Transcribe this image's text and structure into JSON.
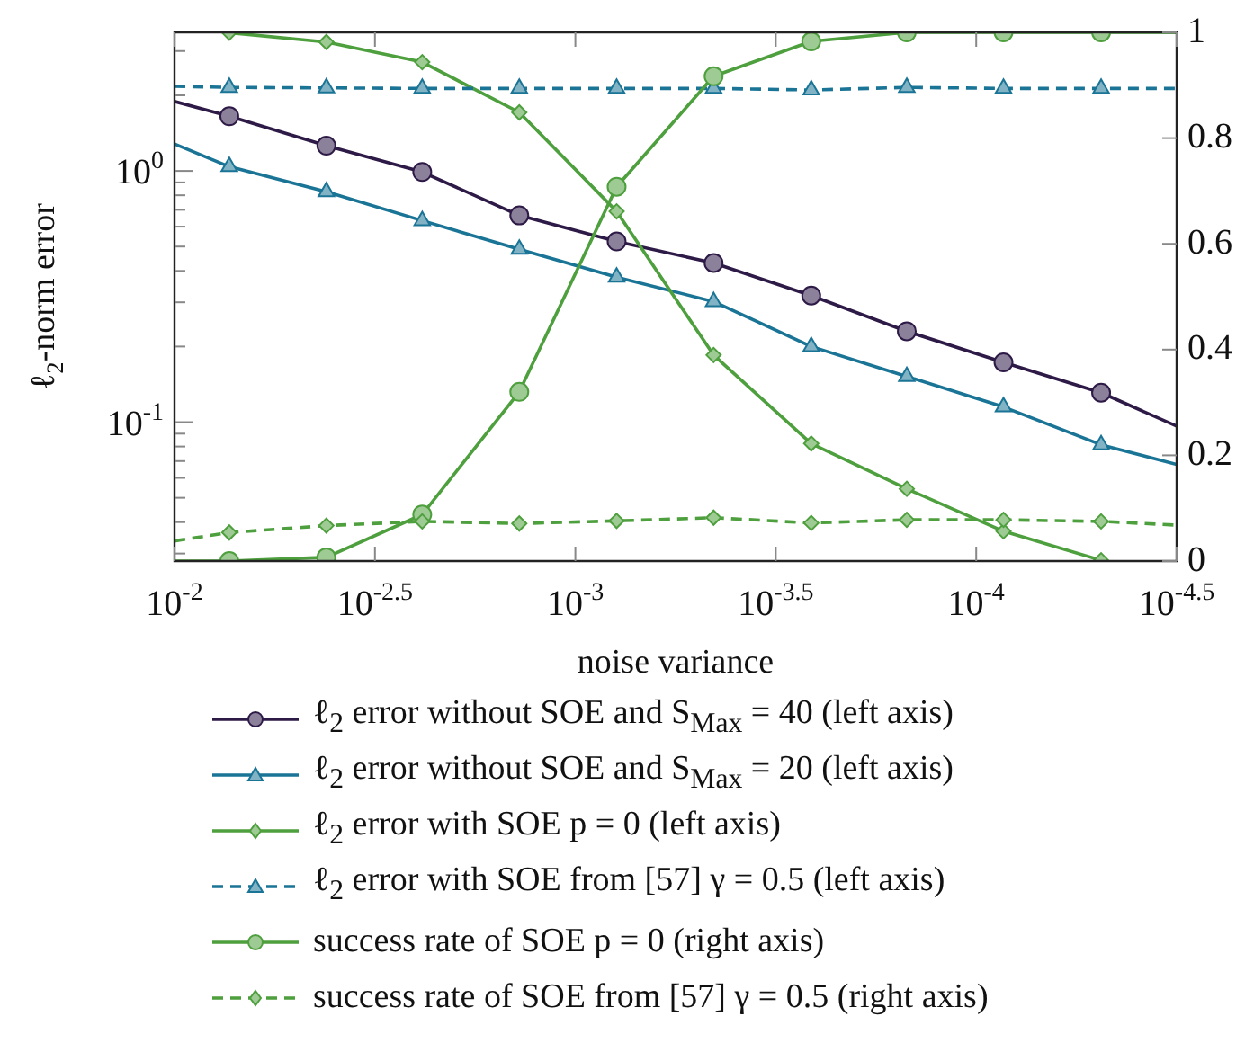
{
  "chart_data": {
    "type": "line",
    "xlabel": "noise variance",
    "ylabel": "ℓ$_{2}$-norm error",
    "log": "xy",
    "x": [
      0.01,
      0.0073,
      0.00418,
      0.00241,
      0.00138,
      0.000789,
      0.000452,
      0.000258,
      0.000149,
      8.55e-05,
      4.88e-05,
      3.1623e-05
    ],
    "xlim": [
      0.01,
      3.1623e-05
    ],
    "xticks": [
      {
        "value": 0.01,
        "label": "10$^{-2}$"
      },
      {
        "value": 0.0031623,
        "label": "10$^{-2.5}$"
      },
      {
        "value": 0.001,
        "label": "10$^{-3}$"
      },
      {
        "value": 0.00031623,
        "label": "10$^{-3.5}$"
      },
      {
        "value": 0.0001,
        "label": "10$^{-4}$"
      },
      {
        "value": 3.1623e-05,
        "label": "10$^{-4.5}$"
      }
    ],
    "ylim": [
      0.028,
      3.56
    ],
    "yticks": [
      {
        "value": 0.03,
        "label": null
      },
      {
        "value": 0.04,
        "label": null
      },
      {
        "value": 0.05,
        "label": null
      },
      {
        "value": 0.06,
        "label": null
      },
      {
        "value": 0.07,
        "label": null
      },
      {
        "value": 0.08,
        "label": null
      },
      {
        "value": 0.09,
        "label": null
      },
      {
        "value": 0.1,
        "label": "10$^{-1}$"
      },
      {
        "value": 0.2,
        "label": null
      },
      {
        "value": 0.3,
        "label": null
      },
      {
        "value": 0.4,
        "label": null
      },
      {
        "value": 0.5,
        "label": null
      },
      {
        "value": 0.6,
        "label": null
      },
      {
        "value": 0.7,
        "label": null
      },
      {
        "value": 0.8,
        "label": null
      },
      {
        "value": 0.9,
        "label": null
      },
      {
        "value": 1,
        "label": "10$^{0}$"
      },
      {
        "value": 2,
        "label": null
      },
      {
        "value": 3,
        "label": null
      }
    ],
    "y2lim": [
      0,
      1
    ],
    "y2ticks": [
      0,
      0.2,
      0.4,
      0.6,
      0.8,
      1
    ],
    "grid": false,
    "legend": "bottom",
    "series": [
      {
        "name": "ℓ$_{2}$ error without SOE and S$_{Max}$ = 40 (left axis)",
        "color": "#2e1a47",
        "marker": "circle",
        "line_style": "solid",
        "values": [
          1.89,
          1.65,
          1.26,
          0.99,
          0.665,
          0.524,
          0.43,
          0.319,
          0.23,
          0.173,
          0.131,
          0.0964
        ]
      },
      {
        "name": "ℓ$_{2}$ error without SOE and S$_{Max}$ = 20 (left axis)",
        "color": "#1a7496",
        "marker": "triangle",
        "line_style": "solid",
        "values": [
          1.28,
          1.04,
          0.826,
          0.634,
          0.488,
          0.378,
          0.302,
          0.2,
          0.152,
          0.115,
          0.0813,
          0.0679
        ]
      },
      {
        "name": "ℓ$_{2}$ error with SOE p = 0 (left axis)",
        "color": "#4e9f3d",
        "marker": "diamond",
        "line_style": "solid",
        "values": [
          null,
          3.55,
          3.26,
          2.71,
          1.71,
          0.69,
          0.185,
          0.0822,
          0.0543,
          0.0368,
          0.0282,
          null
        ]
      },
      {
        "name": "ℓ$_{2}$ error with SOE from [57] γ = 0.5 (left axis)",
        "color": "#1a7496",
        "marker": "triangle",
        "line_style": "dashed",
        "values": [
          2.17,
          2.15,
          2.14,
          2.13,
          2.13,
          2.13,
          2.13,
          2.1,
          2.15,
          2.13,
          2.13,
          2.13
        ]
      },
      {
        "name": "success rate of SOE p = 0 (right axis)",
        "color": "#4e9f3d",
        "marker": "circle",
        "line_style": "solid",
        "axis": "y2",
        "values": [
          0,
          0,
          0.007,
          0.088,
          0.32,
          0.708,
          0.917,
          0.983,
          1,
          1,
          1,
          1
        ]
      },
      {
        "name": "success rate of SOE from [57] γ = 0.5 (right axis)",
        "color": "#4e9f3d",
        "marker": "diamond",
        "line_style": "dashed",
        "axis": "y2",
        "values": [
          0.038,
          0.054,
          0.067,
          0.075,
          0.071,
          0.076,
          0.082,
          0.072,
          0.078,
          0.078,
          0.075,
          0.068
        ]
      }
    ]
  }
}
